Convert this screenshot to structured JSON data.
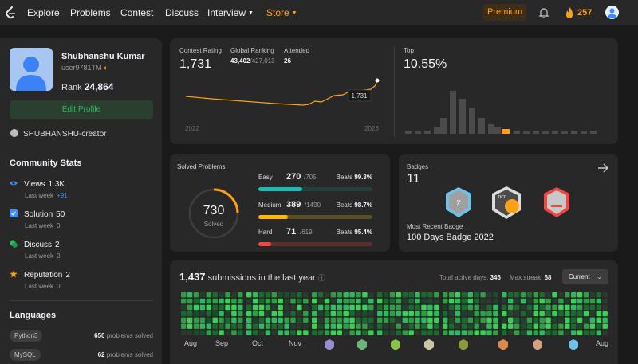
{
  "nav": {
    "items": [
      "Explore",
      "Problems",
      "Contest",
      "Discuss",
      "Interview",
      "Store"
    ],
    "premium": "Premium",
    "streak": "257"
  },
  "profile": {
    "name": "Shubhanshu Kumar",
    "username": "user9781TM",
    "rank_label": "Rank",
    "rank": "24,864",
    "edit": "Edit Profile",
    "github": "SHUBHANSHU-creator"
  },
  "community": {
    "title": "Community Stats",
    "last_week": "Last week",
    "stats": [
      {
        "label": "Views",
        "value": "1.3K",
        "delta": "+91",
        "color": "#3a8eff"
      },
      {
        "label": "Solution",
        "value": "50",
        "delta": "0",
        "color": "#3a8eff"
      },
      {
        "label": "Discuss",
        "value": "2",
        "delta": "0",
        "color": "#2cbb5d"
      },
      {
        "label": "Reputation",
        "value": "2",
        "delta": "0",
        "color": "#ffa116"
      }
    ]
  },
  "languages": {
    "title": "Languages",
    "suffix": "problems solved",
    "items": [
      {
        "name": "Python3",
        "count": "650"
      },
      {
        "name": "MySQL",
        "count": "62"
      }
    ]
  },
  "contest": {
    "rating_label": "Contest Rating",
    "rating": "1,731",
    "global_label": "Global Ranking",
    "global": "43,402",
    "global_total": "/427,013",
    "attended_label": "Attended",
    "attended": "26",
    "year_start": "2022",
    "year_end": "2023",
    "tooltip": "1,731",
    "top_label": "Top",
    "top": "10.55%",
    "line_color": "#ffa116"
  },
  "solved": {
    "title": "Solved Problems",
    "total": "730",
    "sub": "Solved",
    "beats": "Beats",
    "rows": [
      {
        "name": "Easy",
        "count": "270",
        "total": "/705",
        "beats": "99.3%",
        "fraction": 0.383,
        "color": "#1cbaba",
        "bg": "#24403e"
      },
      {
        "name": "Medium",
        "count": "389",
        "total": "/1490",
        "beats": "98.7%",
        "fraction": 0.261,
        "color": "#ffb700",
        "bg": "#5e4e28"
      },
      {
        "name": "Hard",
        "count": "71",
        "total": "/619",
        "beats": "95.4%",
        "fraction": 0.115,
        "color": "#ef4743",
        "bg": "#5a302f"
      }
    ]
  },
  "badges": {
    "title": "Badges",
    "count": "11",
    "recent_label": "Most Recent Badge",
    "recent": "100 Days Badge 2022",
    "badge_text": "DCC"
  },
  "submissions": {
    "count": "1,437",
    "text": "submissions in the last year",
    "active_label": "Total active days:",
    "active": "346",
    "streak_label": "Max streak:",
    "streak": "68",
    "dropdown": "Current",
    "months": [
      "Aug",
      "Sep",
      "Oct",
      "Nov",
      "Aug"
    ]
  }
}
